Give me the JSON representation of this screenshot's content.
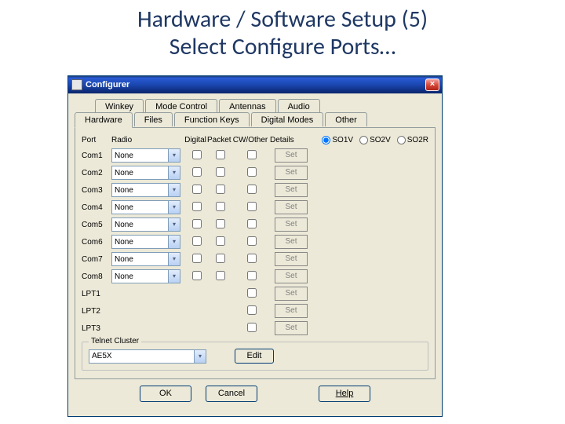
{
  "slide": {
    "title_line1": "Hardware / Software Setup (5)",
    "title_line2": "Select Configure Ports…"
  },
  "window": {
    "title": "Configurer",
    "close_glyph": "×"
  },
  "tabs_back": [
    "Winkey",
    "Mode Control",
    "Antennas",
    "Audio"
  ],
  "tabs_front": [
    "Hardware",
    "Files",
    "Function Keys",
    "Digital Modes",
    "Other"
  ],
  "active_tab": "Hardware",
  "columns": {
    "port": "Port",
    "radio": "Radio",
    "digital": "Digital",
    "packet": "Packet",
    "cw_other": "CW/Other",
    "details": "Details"
  },
  "so_radios": [
    {
      "label": "SO1V",
      "checked": true
    },
    {
      "label": "SO2V",
      "checked": false
    },
    {
      "label": "SO2R",
      "checked": false
    }
  ],
  "combo_arrow": "▾",
  "set_label": "Set",
  "ports": [
    {
      "name": "Com1",
      "radio": "None",
      "has_radio": true
    },
    {
      "name": "Com2",
      "radio": "None",
      "has_radio": true
    },
    {
      "name": "Com3",
      "radio": "None",
      "has_radio": true
    },
    {
      "name": "Com4",
      "radio": "None",
      "has_radio": true
    },
    {
      "name": "Com5",
      "radio": "None",
      "has_radio": true
    },
    {
      "name": "Com6",
      "radio": "None",
      "has_radio": true
    },
    {
      "name": "Com7",
      "radio": "None",
      "has_radio": true
    },
    {
      "name": "Com8",
      "radio": "None",
      "has_radio": true
    },
    {
      "name": "LPT1",
      "radio": "",
      "has_radio": false
    },
    {
      "name": "LPT2",
      "radio": "",
      "has_radio": false
    },
    {
      "name": "LPT3",
      "radio": "",
      "has_radio": false
    }
  ],
  "telnet": {
    "legend": "Telnet Cluster",
    "value": "AE5X",
    "edit_label": "Edit"
  },
  "buttons": {
    "ok": "OK",
    "cancel": "Cancel",
    "help": "Help"
  }
}
